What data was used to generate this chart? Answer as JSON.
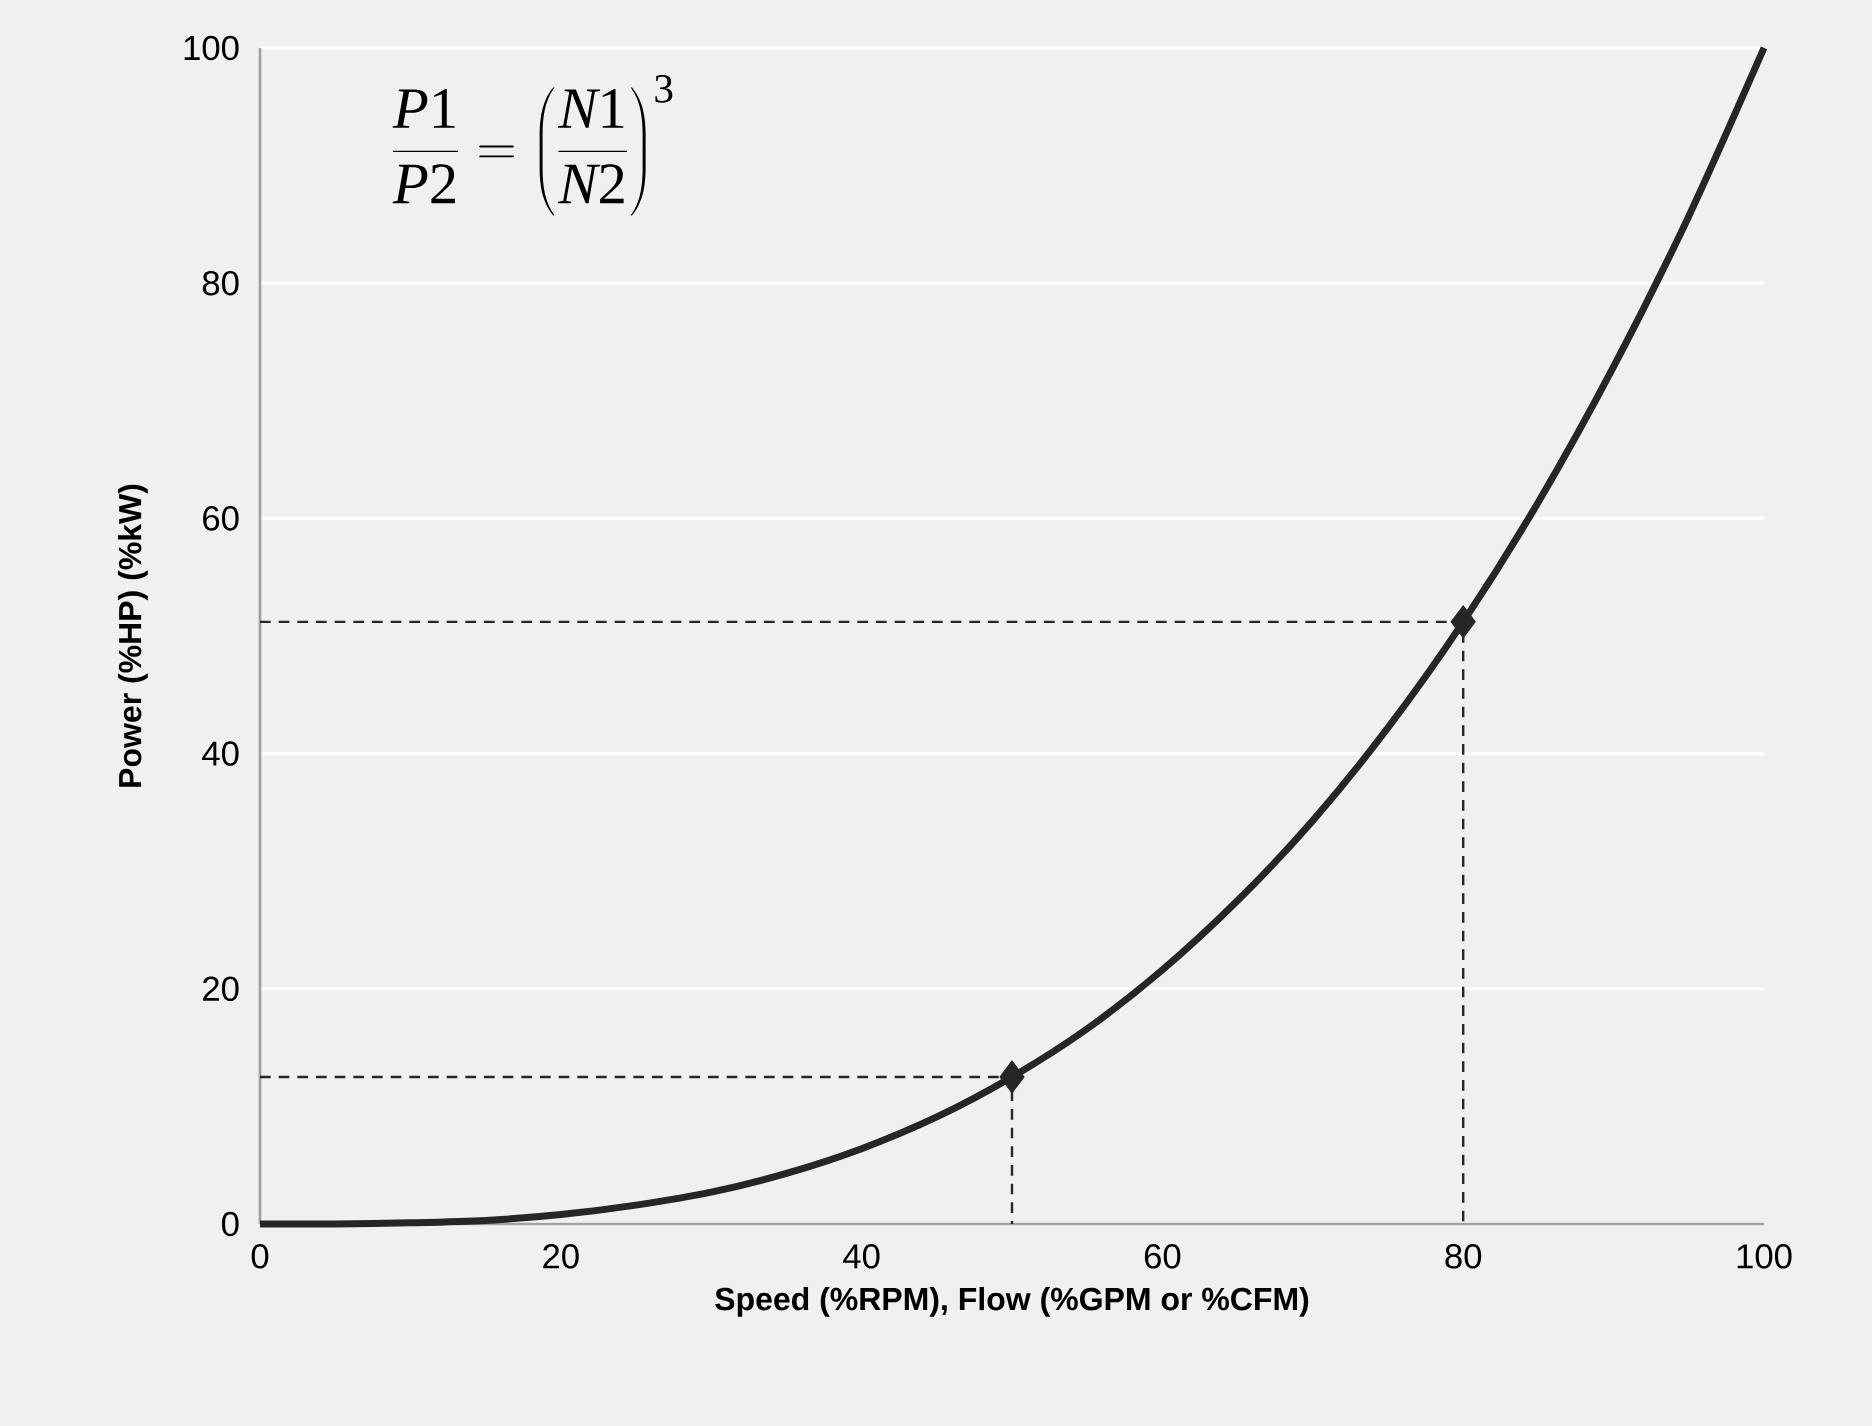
{
  "chart_data": {
    "type": "line",
    "xlabel": "Speed (%RPM), Flow (%GPM or %CFM)",
    "ylabel": "Power (%HP) (%kW)",
    "xlim": [
      0,
      100
    ],
    "ylim": [
      0,
      100
    ],
    "xticks": [
      0,
      20,
      40,
      60,
      80,
      100
    ],
    "yticks": [
      0,
      20,
      40,
      60,
      80,
      100
    ],
    "grid": "y",
    "annotations": [
      "\\frac{P1}{P2}=\\left(\\frac{N1}{N2}\\right)^{3}"
    ],
    "series": [
      {
        "color": "#262626",
        "x": [
          0,
          5,
          10,
          15,
          20,
          25,
          30,
          35,
          40,
          45,
          50,
          55,
          60,
          65,
          70,
          75,
          80,
          85,
          90,
          95,
          100
        ],
        "values": [
          0,
          0,
          0.1,
          0.3,
          0.8,
          1.6,
          2.7,
          4.3,
          6.4,
          9.1,
          12.5,
          16.6,
          21.6,
          27.5,
          34.3,
          42.2,
          51.2,
          61.4,
          72.9,
          85.7,
          100
        ]
      },
      {
        "type": "line",
        "line_style": "dashed",
        "color": "#262626",
        "x": [
          0,
          50,
          50
        ],
        "values": [
          12.5,
          12.5,
          0
        ]
      },
      {
        "type": "line",
        "line_style": "dashed",
        "color": "#262626",
        "x": [
          0,
          80,
          80
        ],
        "values": [
          51.2,
          51.2,
          0
        ]
      },
      {
        "type": "scatter",
        "marker": "diamond",
        "color": "#262626",
        "x": [
          50,
          80
        ],
        "values": [
          12.5,
          51.2
        ]
      }
    ]
  }
}
